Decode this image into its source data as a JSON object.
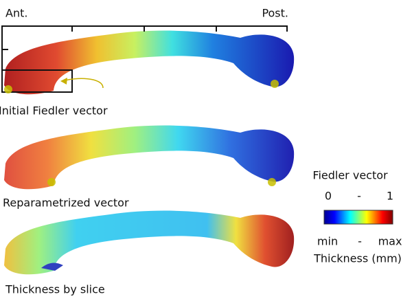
{
  "labels": {
    "anterior": "Ant.",
    "posterior": "Post."
  },
  "panels": [
    {
      "caption": "Initial Fiedler vector"
    },
    {
      "caption": "Reparametrized vector"
    },
    {
      "caption": "Thickness by slice"
    }
  ],
  "colorbar": {
    "title": "Fiedler vector",
    "top_min": "0",
    "top_sep": "-",
    "top_max": "1",
    "bottom_min": "min",
    "bottom_sep": "-",
    "bottom_max": "max",
    "bottom_title": "Thickness (mm)"
  }
}
